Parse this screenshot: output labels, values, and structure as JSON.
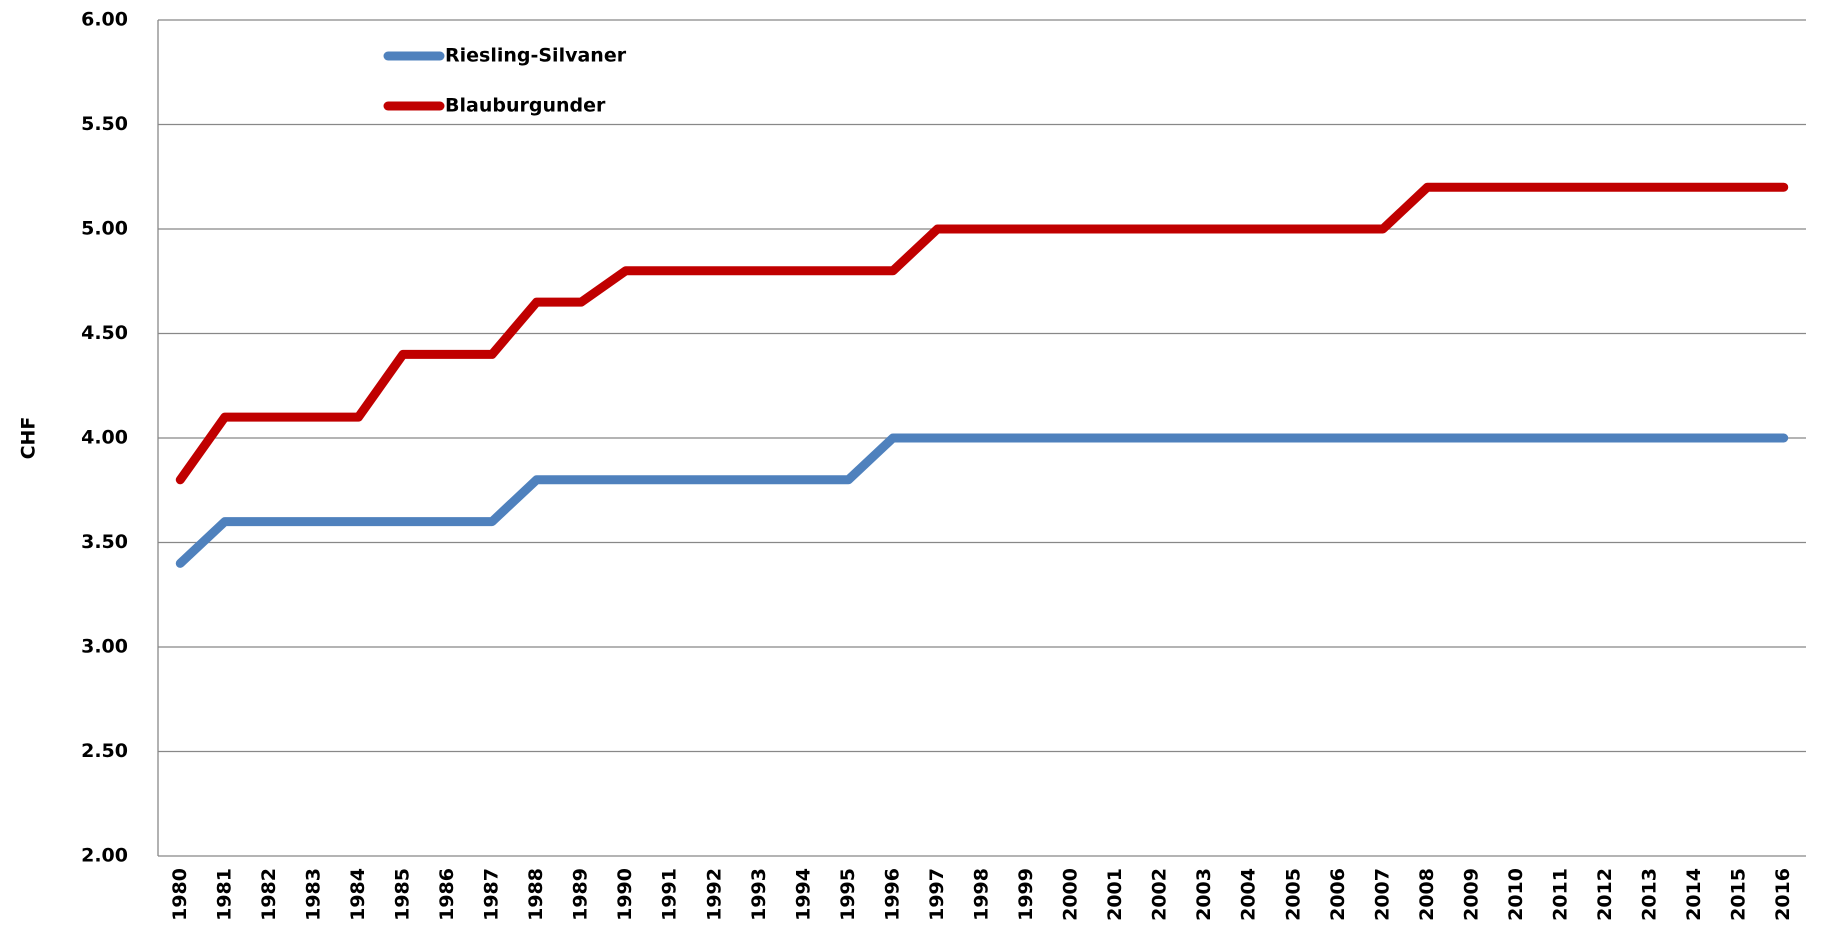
{
  "chart_data": {
    "type": "line",
    "y_label": "CHF",
    "categories": [
      "1980",
      "1981",
      "1982",
      "1983",
      "1984",
      "1985",
      "1986",
      "1987",
      "1988",
      "1989",
      "1990",
      "1991",
      "1992",
      "1993",
      "1994",
      "1995",
      "1996",
      "1997",
      "1998",
      "1999",
      "2000",
      "2001",
      "2002",
      "2003",
      "2004",
      "2005",
      "2006",
      "2007",
      "2008",
      "2009",
      "2010",
      "2011",
      "2012",
      "2013",
      "2014",
      "2015",
      "2016"
    ],
    "series": [
      {
        "name": "Riesling-Silvaner",
        "color": "#4f81bd",
        "values": [
          3.4,
          3.6,
          3.6,
          3.6,
          3.6,
          3.6,
          3.6,
          3.6,
          3.8,
          3.8,
          3.8,
          3.8,
          3.8,
          3.8,
          3.8,
          3.8,
          4.0,
          4.0,
          4.0,
          4.0,
          4.0,
          4.0,
          4.0,
          4.0,
          4.0,
          4.0,
          4.0,
          4.0,
          4.0,
          4.0,
          4.0,
          4.0,
          4.0,
          4.0,
          4.0,
          4.0,
          4.0
        ]
      },
      {
        "name": "Blauburgunder",
        "color": "#c00000",
        "values": [
          3.8,
          4.1,
          4.1,
          4.1,
          4.1,
          4.4,
          4.4,
          4.4,
          4.65,
          4.65,
          4.8,
          4.8,
          4.8,
          4.8,
          4.8,
          4.8,
          4.8,
          5.0,
          5.0,
          5.0,
          5.0,
          5.0,
          5.0,
          5.0,
          5.0,
          5.0,
          5.0,
          5.0,
          5.2,
          5.2,
          5.2,
          5.2,
          5.2,
          5.2,
          5.2,
          5.2,
          5.2
        ]
      }
    ],
    "ylim": [
      2,
      6
    ],
    "yticks": [
      {
        "value": 2,
        "label": "2.00"
      },
      {
        "value": 2.5,
        "label": "2.50"
      },
      {
        "value": 3,
        "label": "3.00"
      },
      {
        "value": 3.5,
        "label": "3.50"
      },
      {
        "value": 4,
        "label": "4.00"
      },
      {
        "value": 4.5,
        "label": "4.50"
      },
      {
        "value": 5,
        "label": "5.00"
      },
      {
        "value": 5.5,
        "label": "5.50"
      },
      {
        "value": 6,
        "label": "6.00"
      }
    ],
    "grid": true,
    "legend": "top-left"
  }
}
